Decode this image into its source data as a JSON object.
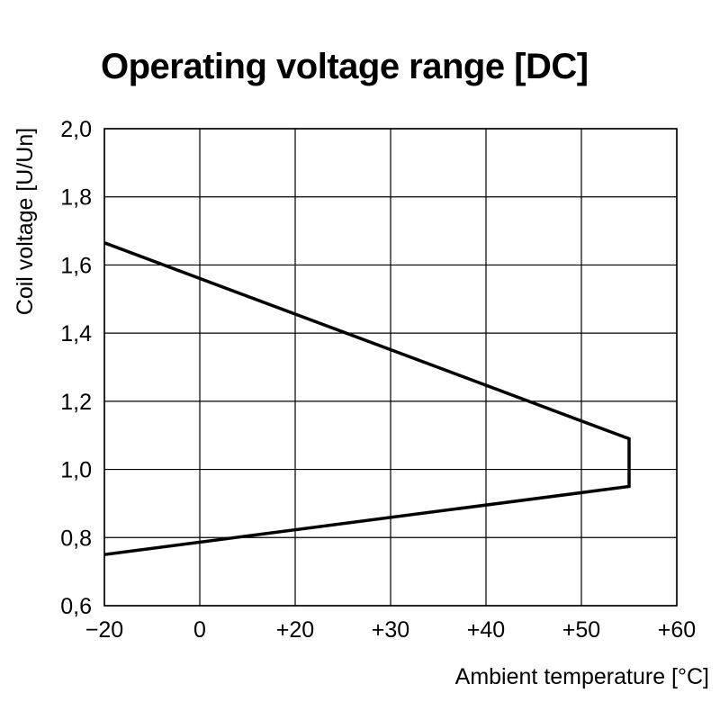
{
  "chart_data": {
    "type": "line",
    "title": "Operating voltage range [DC]",
    "xlabel": "Ambient temperature [°C]",
    "ylabel": "Coil voltage [U/Un]",
    "xlim": [
      -20,
      60
    ],
    "ylim": [
      0.6,
      2.0
    ],
    "x_ticks": [
      -20,
      0,
      20,
      30,
      40,
      50,
      60
    ],
    "x_tick_labels": [
      "−20",
      "0",
      "+20",
      "+30",
      "+40",
      "+50",
      "+60"
    ],
    "y_ticks": [
      0.6,
      0.8,
      1.0,
      1.2,
      1.4,
      1.6,
      1.8,
      2.0
    ],
    "y_tick_labels": [
      "0,6",
      "0,8",
      "1,0",
      "1,2",
      "1,4",
      "1,6",
      "1,8",
      "2,0"
    ],
    "grid": true,
    "series": [
      {
        "x": [
          -20,
          55,
          55,
          -20
        ],
        "y": [
          1.665,
          1.09,
          0.95,
          0.75
        ],
        "color": "#000000"
      }
    ]
  }
}
